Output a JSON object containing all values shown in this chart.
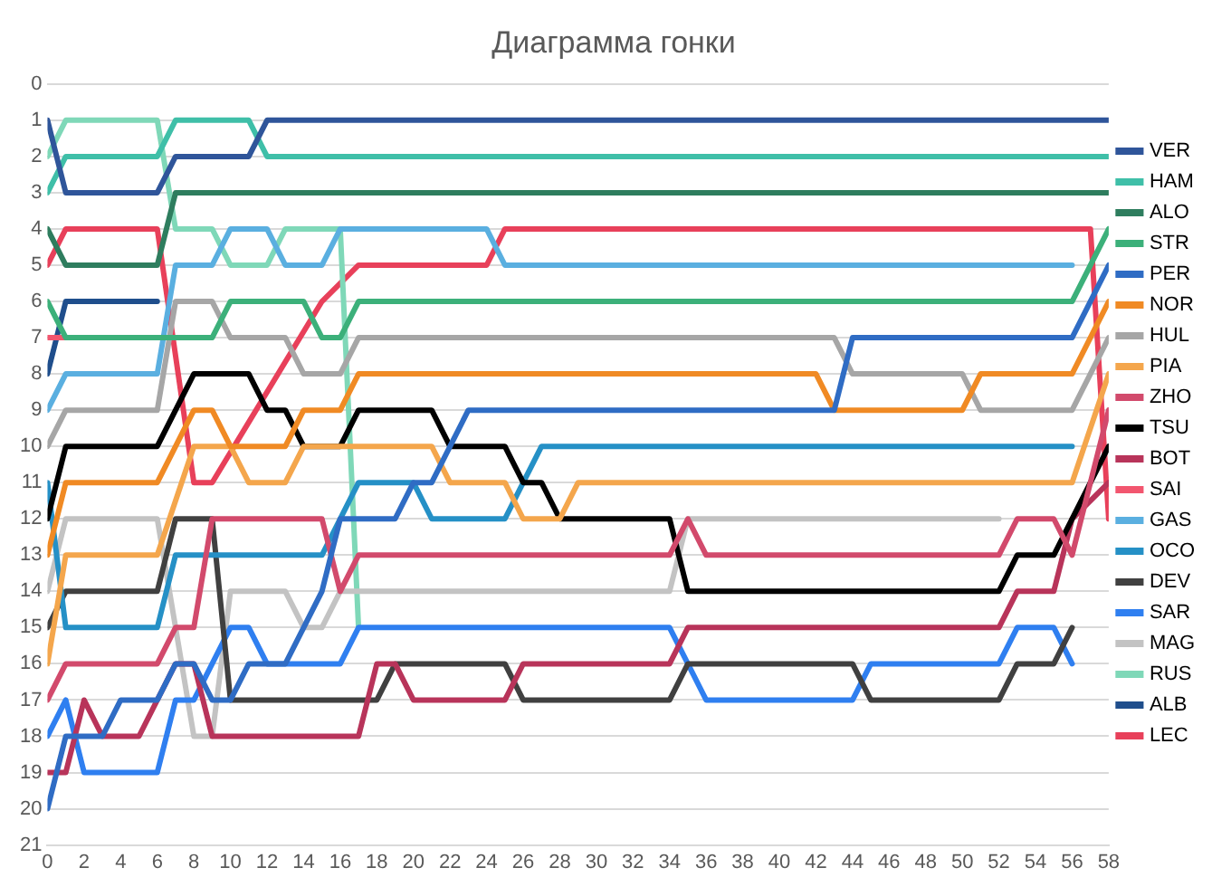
{
  "chart_data": {
    "type": "line",
    "title": "Диаграмма гонки",
    "xlim": [
      0,
      58
    ],
    "xticks": [
      0,
      2,
      4,
      6,
      8,
      10,
      12,
      14,
      16,
      18,
      20,
      22,
      24,
      26,
      28,
      30,
      32,
      34,
      36,
      38,
      40,
      42,
      44,
      46,
      48,
      50,
      52,
      54,
      56,
      58
    ],
    "ylim": [
      21,
      0
    ],
    "yticks": [
      0,
      1,
      2,
      3,
      4,
      5,
      6,
      7,
      8,
      9,
      10,
      11,
      12,
      13,
      14,
      15,
      16,
      17,
      18,
      19,
      20,
      21
    ],
    "grid": "y",
    "legend": "right",
    "marker": "none",
    "line_style": "solid",
    "series": [
      {
        "name": "VER",
        "color": "#2f559a",
        "x": [
          0,
          1,
          6,
          7,
          11,
          12,
          58
        ],
        "values": [
          1,
          3,
          3,
          2,
          2,
          1,
          1
        ]
      },
      {
        "name": "HAM",
        "color": "#3fbfa8",
        "x": [
          0,
          1,
          6,
          7,
          11,
          12,
          58
        ],
        "values": [
          3,
          2,
          2,
          1,
          1,
          2,
          2
        ]
      },
      {
        "name": "ALO",
        "color": "#2e7d5e",
        "x": [
          0,
          1,
          6,
          7,
          58
        ],
        "values": [
          4,
          5,
          5,
          3,
          3
        ]
      },
      {
        "name": "STR",
        "color": "#3cb07a",
        "x": [
          0,
          1,
          6,
          7,
          9,
          10,
          14,
          15,
          16,
          17,
          56,
          58
        ],
        "values": [
          6,
          7,
          7,
          7,
          7,
          6,
          6,
          7,
          7,
          6,
          6,
          4
        ]
      },
      {
        "name": "PER",
        "color": "#2f6cc4",
        "x": [
          0,
          1,
          3,
          4,
          6,
          7,
          8,
          9,
          10,
          11,
          13,
          14,
          15,
          16,
          19,
          20,
          21,
          23,
          43,
          44,
          56,
          58
        ],
        "values": [
          20,
          18,
          18,
          17,
          17,
          16,
          16,
          17,
          17,
          16,
          16,
          15,
          14,
          12,
          12,
          11,
          11,
          9,
          9,
          7,
          7,
          5
        ]
      },
      {
        "name": "NOR",
        "color": "#f08a24",
        "x": [
          0,
          1,
          6,
          8,
          9,
          10,
          13,
          14,
          16,
          17,
          42,
          43,
          50,
          51,
          56,
          58
        ],
        "values": [
          13,
          11,
          11,
          9,
          9,
          10,
          10,
          9,
          9,
          8,
          8,
          9,
          9,
          8,
          8,
          6
        ]
      },
      {
        "name": "HUL",
        "color": "#a6a6a6",
        "x": [
          0,
          1,
          6,
          7,
          9,
          10,
          13,
          14,
          16,
          17,
          43,
          44,
          50,
          51,
          56,
          58
        ],
        "values": [
          10,
          9,
          9,
          6,
          6,
          7,
          7,
          8,
          8,
          7,
          7,
          8,
          8,
          9,
          9,
          7
        ]
      },
      {
        "name": "PIA",
        "color": "#f4a64c",
        "x": [
          0,
          1,
          6,
          8,
          10,
          11,
          13,
          14,
          21,
          22,
          25,
          26,
          28,
          29,
          56,
          58
        ],
        "values": [
          16,
          13,
          13,
          10,
          10,
          11,
          11,
          10,
          10,
          11,
          11,
          12,
          12,
          11,
          11,
          8
        ]
      },
      {
        "name": "ZHO",
        "color": "#d24a6c",
        "x": [
          0,
          1,
          6,
          7,
          8,
          9,
          15,
          16,
          17,
          34,
          35,
          36,
          52,
          53,
          55,
          56,
          58
        ],
        "values": [
          17,
          16,
          16,
          15,
          15,
          12,
          12,
          14,
          13,
          13,
          12,
          13,
          13,
          12,
          12,
          13,
          9
        ]
      },
      {
        "name": "TSU",
        "color": "#000000",
        "x": [
          0,
          1,
          6,
          8,
          11,
          12,
          13,
          14,
          16,
          17,
          21,
          22,
          25,
          26,
          27,
          28,
          34,
          35,
          52,
          53,
          55,
          58
        ],
        "values": [
          12,
          10,
          10,
          8,
          8,
          9,
          9,
          10,
          10,
          9,
          9,
          10,
          10,
          11,
          11,
          12,
          12,
          14,
          14,
          13,
          13,
          10
        ]
      },
      {
        "name": "BOT",
        "color": "#b8345a",
        "x": [
          0,
          1,
          2,
          3,
          5,
          6,
          7,
          8,
          9,
          17,
          18,
          19,
          20,
          25,
          26,
          34,
          35,
          52,
          53,
          55,
          56,
          58
        ],
        "values": [
          19,
          19,
          17,
          18,
          18,
          17,
          16,
          16,
          18,
          18,
          16,
          16,
          17,
          17,
          16,
          16,
          15,
          15,
          14,
          14,
          12,
          11
        ]
      },
      {
        "name": "SAI",
        "color": "#f2566f",
        "x": [
          0,
          1
        ],
        "values": [
          7,
          7
        ]
      },
      {
        "name": "GAS",
        "color": "#5aafe0",
        "x": [
          0,
          1,
          6,
          7,
          9,
          10,
          12,
          13,
          15,
          16,
          24,
          25,
          56
        ],
        "values": [
          9,
          8,
          8,
          5,
          5,
          4,
          4,
          5,
          5,
          4,
          4,
          5,
          5
        ]
      },
      {
        "name": "OCO",
        "color": "#2590c6",
        "x": [
          0,
          1,
          6,
          7,
          15,
          17,
          20,
          21,
          25,
          26,
          27,
          56
        ],
        "values": [
          11,
          15,
          15,
          13,
          13,
          11,
          11,
          12,
          12,
          11,
          10,
          10
        ]
      },
      {
        "name": "DEV",
        "color": "#404040",
        "x": [
          0,
          1,
          6,
          7,
          9,
          10,
          18,
          19,
          25,
          26,
          34,
          35,
          44,
          45,
          52,
          53,
          55,
          56
        ],
        "values": [
          15,
          14,
          14,
          12,
          12,
          17,
          17,
          16,
          16,
          17,
          17,
          16,
          16,
          17,
          17,
          16,
          16,
          15
        ]
      },
      {
        "name": "SAR",
        "color": "#2f7ff0",
        "x": [
          0,
          1,
          2,
          6,
          7,
          8,
          9,
          10,
          11,
          12,
          16,
          17,
          34,
          36,
          44,
          45,
          52,
          53,
          55,
          56
        ],
        "values": [
          18,
          17,
          19,
          19,
          17,
          17,
          16,
          15,
          15,
          16,
          16,
          15,
          15,
          17,
          17,
          16,
          16,
          15,
          15,
          16
        ]
      },
      {
        "name": "MAG",
        "color": "#c3c3c3",
        "x": [
          0,
          1,
          6,
          7,
          8,
          9,
          10,
          13,
          14,
          15,
          16,
          34,
          35,
          52
        ],
        "values": [
          14,
          12,
          12,
          15,
          18,
          18,
          14,
          14,
          15,
          15,
          14,
          14,
          12,
          12
        ]
      },
      {
        "name": "RUS",
        "color": "#7fd8b8",
        "x": [
          0,
          1,
          6,
          7,
          9,
          10,
          12,
          13,
          15,
          16,
          17
        ],
        "values": [
          2,
          1,
          1,
          4,
          4,
          5,
          5,
          4,
          4,
          4,
          15
        ]
      },
      {
        "name": "ALB",
        "color": "#1f4e8c",
        "x": [
          0,
          1,
          6
        ],
        "values": [
          8,
          6,
          6
        ]
      },
      {
        "name": "LEC",
        "color": "#e8405a",
        "x": [
          0,
          1,
          6,
          8,
          9,
          15,
          17,
          24,
          25,
          57,
          58
        ],
        "values": [
          5,
          4,
          4,
          11,
          11,
          6,
          5,
          5,
          4,
          4,
          12
        ]
      }
    ]
  }
}
